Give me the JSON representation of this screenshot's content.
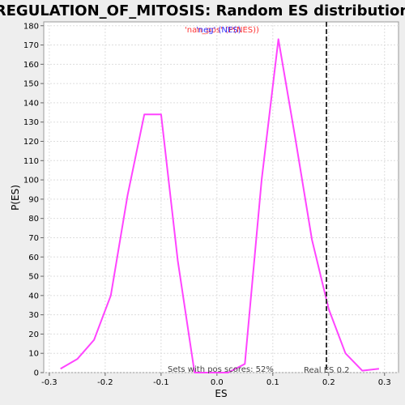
{
  "chart_data": {
    "type": "line",
    "title": "REGULATION_OF_MITOSIS: Random ES distribution",
    "xlabel": "ES",
    "ylabel": "P(ES)",
    "xlim": [
      -0.31,
      0.325
    ],
    "ylim": [
      0,
      182
    ],
    "xticks": [
      -0.3,
      -0.2,
      -0.1,
      0.0,
      0.1,
      0.2,
      0.3
    ],
    "xtick_labels": [
      "-0.3",
      "-0.2",
      "-0.1",
      "0.0",
      "0.1",
      "0.2",
      "0.3"
    ],
    "yticks": [
      0,
      10,
      20,
      30,
      40,
      50,
      60,
      70,
      80,
      90,
      100,
      110,
      120,
      130,
      140,
      150,
      160,
      170,
      180
    ],
    "grid": true,
    "legend_labels": [
      "'nan_pos' (P(NES))",
      "'neg' (NES)"
    ],
    "series": [
      {
        "color": "#ff44ff",
        "x": [
          -0.28,
          -0.25,
          -0.22,
          -0.19,
          -0.16,
          -0.13,
          -0.1,
          -0.07,
          -0.04,
          -0.01,
          0.02,
          0.05,
          0.08,
          0.11,
          0.14,
          0.17,
          0.2,
          0.23,
          0.26,
          0.29
        ],
        "y": [
          2,
          7,
          17,
          40,
          92,
          134,
          134,
          58,
          0,
          0,
          0,
          4.5,
          100,
          173,
          122,
          69,
          33,
          10,
          1,
          2
        ]
      }
    ],
    "reference_line": {
      "x": 0.196,
      "label": "Real ES 0.2",
      "style": "dashed",
      "color": "#333333"
    },
    "annotation": "Sets with pos scores: 52%"
  }
}
